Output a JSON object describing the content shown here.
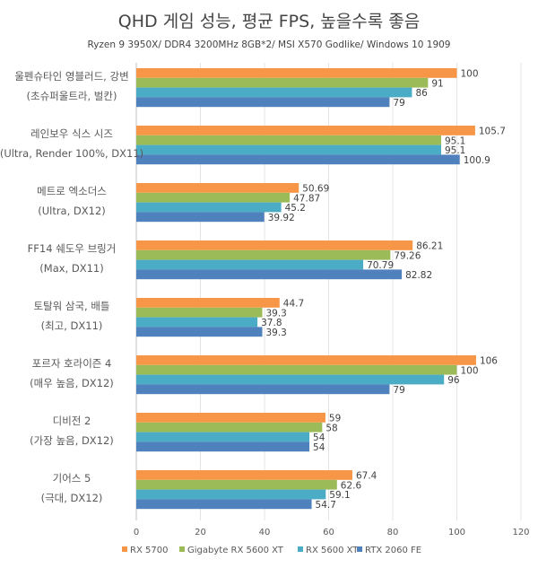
{
  "chart_data": {
    "type": "bar",
    "orientation": "horizontal",
    "title": "QHD 게임 성능, 평균 FPS,  높을수록 좋음",
    "subtitle": "Ryzen 9 3950X/ DDR4 3200MHz 8GB*2/ MSI X570 Godlike/ Windows 10 1909",
    "categories": [
      [
        "울펜슈타인 영블러드, 강변",
        "(초슈퍼울트라, 벌칸)"
      ],
      [
        "레인보우 식스 시즈",
        "(Ultra, Render 100%, DX11)"
      ],
      [
        "메트로 엑소더스",
        "(Ultra, DX12)"
      ],
      [
        "FF14 쉐도우 브링거",
        "(Max, DX11)"
      ],
      [
        "토탈워 삼국, 배틀",
        "(최고, DX11)"
      ],
      [
        "포르자 호라이즌 4",
        "(매우 높음, DX12)"
      ],
      [
        "디비전 2",
        "(가장 높음, DX12)"
      ],
      [
        "기어스 5",
        "(극대, DX12)"
      ]
    ],
    "series": [
      {
        "name": "RX 5700",
        "color": "#F79646",
        "values": [
          100,
          105.7,
          50.69,
          86.21,
          44.7,
          106,
          59,
          67.4
        ]
      },
      {
        "name": "Gigabyte RX 5600 XT",
        "color": "#9BBB59",
        "values": [
          91,
          95.1,
          47.87,
          79.26,
          39.3,
          100,
          58,
          62.6
        ]
      },
      {
        "name": "RX 5600 XT",
        "color": "#4BACC6",
        "values": [
          86,
          95.1,
          45.2,
          70.79,
          37.8,
          96,
          54,
          59.1
        ]
      },
      {
        "name": "RTX 2060 FE",
        "color": "#4F81BD",
        "values": [
          79,
          100.9,
          39.92,
          82.82,
          39.3,
          79,
          54,
          54.7
        ]
      }
    ],
    "xlim": [
      0,
      120
    ],
    "xticks": [
      "0",
      "20",
      "40",
      "60",
      "80",
      "100",
      "120"
    ],
    "grid": true,
    "legend": "bottom"
  }
}
